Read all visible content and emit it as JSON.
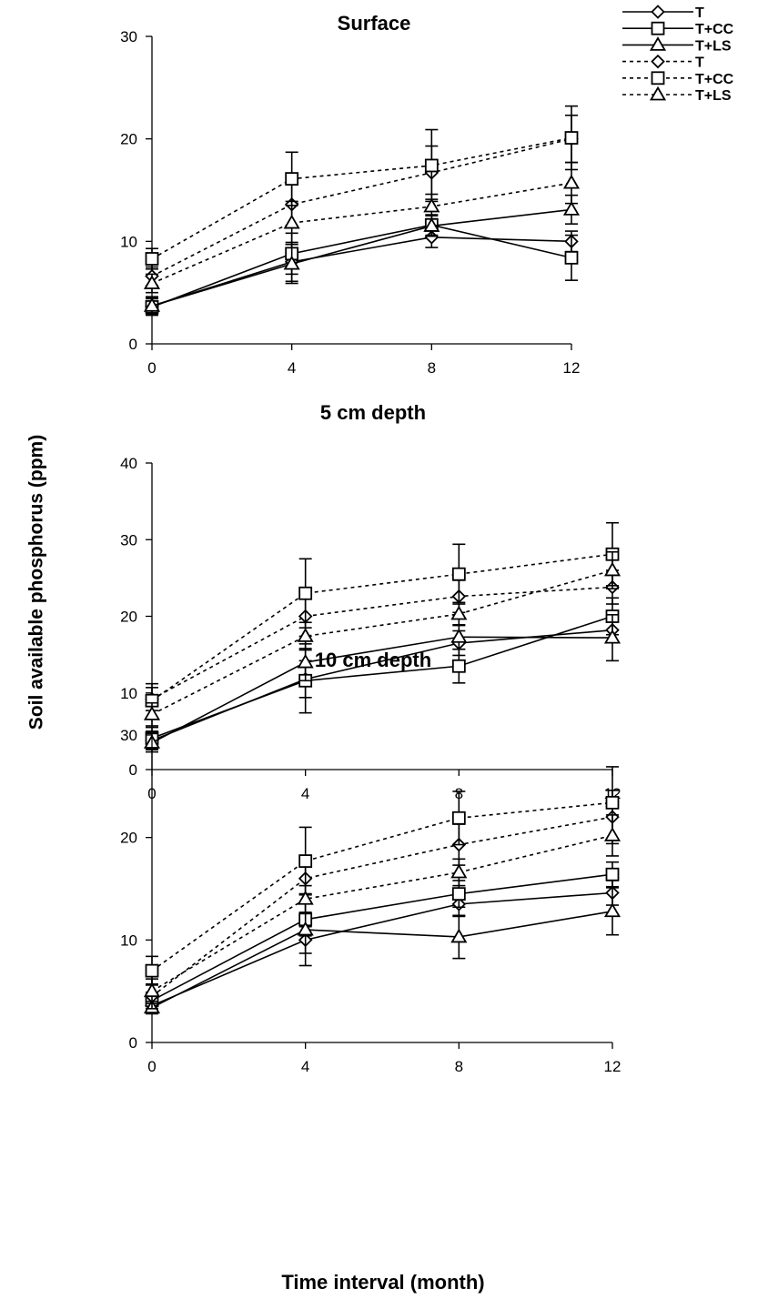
{
  "figure": {
    "ylabel": "Soil available phosphorus (ppm)",
    "xlabel": "Time interval (month)"
  },
  "legend": {
    "placement": "top-right",
    "entries": [
      {
        "label": "T",
        "marker": "diamond",
        "dash": "solid"
      },
      {
        "label": "T+CC",
        "marker": "square",
        "dash": "solid"
      },
      {
        "label": "T+LS",
        "marker": "triangle",
        "dash": "solid"
      },
      {
        "label": "T",
        "marker": "diamond",
        "dash": "dotted"
      },
      {
        "label": "T+CC",
        "marker": "square",
        "dash": "dotted"
      },
      {
        "label": "T+LS",
        "marker": "triangle",
        "dash": "dotted"
      }
    ]
  },
  "chart_data": [
    {
      "type": "line",
      "title": "Surface",
      "x": [
        0,
        4,
        8,
        12
      ],
      "xticks": [
        "0",
        "4",
        "8",
        "12"
      ],
      "ylim": [
        0,
        30
      ],
      "yticks": [
        0,
        10,
        20,
        30
      ],
      "grid": false,
      "series": [
        {
          "name": "T",
          "style": "solid",
          "marker": "diamond",
          "values": [
            3.7,
            8.0,
            10.4,
            10.0
          ],
          "errors": [
            0.9,
            1.9,
            1.0,
            1.0
          ]
        },
        {
          "name": "T+CC",
          "style": "solid",
          "marker": "square",
          "values": [
            3.6,
            8.8,
            11.6,
            8.4
          ],
          "errors": [
            0.8,
            2.0,
            1.0,
            2.2
          ]
        },
        {
          "name": "T+LS",
          "style": "solid",
          "marker": "triangle",
          "values": [
            3.7,
            7.8,
            11.5,
            13.1
          ],
          "errors": [
            0.8,
            1.9,
            1.0,
            1.4
          ]
        },
        {
          "name": "T",
          "style": "dotted",
          "marker": "diamond",
          "values": [
            6.6,
            13.6,
            16.7,
            20.0
          ],
          "errors": [
            0.9,
            2.1,
            2.6,
            2.3
          ]
        },
        {
          "name": "T+CC",
          "style": "dotted",
          "marker": "square",
          "values": [
            8.3,
            16.1,
            17.4,
            20.1
          ],
          "errors": [
            1.0,
            2.6,
            3.5,
            3.1
          ]
        },
        {
          "name": "T+LS",
          "style": "dotted",
          "marker": "triangle",
          "values": [
            5.9,
            11.8,
            13.4,
            15.7
          ],
          "errors": [
            0.9,
            2.1,
            1.2,
            2.0
          ]
        }
      ]
    },
    {
      "type": "line",
      "title": "5 cm depth",
      "x": [
        0,
        4,
        8,
        12
      ],
      "xticks": [
        "0",
        "4",
        "8",
        "12"
      ],
      "ylim": [
        0,
        40
      ],
      "yticks": [
        0,
        10,
        20,
        30,
        40
      ],
      "grid": false,
      "series": [
        {
          "name": "T",
          "style": "solid",
          "marker": "diamond",
          "values": [
            3.8,
            11.8,
            16.5,
            18.2
          ],
          "errors": [
            1.2,
            2.4,
            1.6,
            1.6
          ]
        },
        {
          "name": "T+CC",
          "style": "solid",
          "marker": "square",
          "values": [
            4.1,
            11.6,
            13.5,
            20.0
          ],
          "errors": [
            1.4,
            4.2,
            2.2,
            2.4
          ]
        },
        {
          "name": "T+LS",
          "style": "solid",
          "marker": "triangle",
          "values": [
            3.5,
            14.0,
            17.3,
            17.2
          ],
          "errors": [
            1.2,
            2.4,
            1.6,
            3.0
          ]
        },
        {
          "name": "T",
          "style": "dotted",
          "marker": "diamond",
          "values": [
            9.2,
            20.0,
            22.6,
            23.8
          ],
          "errors": [
            1.5,
            2.6,
            2.1,
            2.2
          ]
        },
        {
          "name": "T+CC",
          "style": "dotted",
          "marker": "square",
          "values": [
            9.0,
            23.0,
            25.5,
            28.1
          ],
          "errors": [
            2.2,
            4.5,
            3.9,
            4.1
          ]
        },
        {
          "name": "T+LS",
          "style": "dotted",
          "marker": "triangle",
          "values": [
            7.2,
            17.4,
            20.3,
            26.0
          ],
          "errors": [
            1.5,
            1.8,
            1.5,
            2.4
          ]
        }
      ]
    },
    {
      "type": "line",
      "title": "10 cm depth",
      "x": [
        0,
        4,
        8,
        12
      ],
      "xticks": [
        "0",
        "4",
        "8",
        "12"
      ],
      "ylim": [
        0,
        30
      ],
      "yticks": [
        0,
        10,
        20,
        30
      ],
      "grid": false,
      "series": [
        {
          "name": "T",
          "style": "solid",
          "marker": "diamond",
          "values": [
            3.6,
            10.0,
            13.5,
            14.6
          ],
          "errors": [
            0.6,
            1.3,
            1.2,
            1.2
          ]
        },
        {
          "name": "T+CC",
          "style": "solid",
          "marker": "square",
          "values": [
            4.1,
            12.0,
            14.5,
            16.4
          ],
          "errors": [
            0.8,
            1.6,
            1.3,
            1.2
          ]
        },
        {
          "name": "T+LS",
          "style": "solid",
          "marker": "triangle",
          "values": [
            3.4,
            11.0,
            10.3,
            12.8
          ],
          "errors": [
            0.6,
            3.5,
            2.1,
            2.3
          ]
        },
        {
          "name": "T",
          "style": "dotted",
          "marker": "diamond",
          "values": [
            4.5,
            16.0,
            19.3,
            22.0
          ],
          "errors": [
            1.2,
            1.5,
            2.0,
            2.6
          ]
        },
        {
          "name": "T+CC",
          "style": "dotted",
          "marker": "square",
          "values": [
            7.0,
            17.7,
            21.9,
            23.4
          ],
          "errors": [
            1.4,
            3.3,
            2.6,
            3.5
          ]
        },
        {
          "name": "T+LS",
          "style": "dotted",
          "marker": "triangle",
          "values": [
            5.0,
            14.0,
            16.6,
            20.2
          ],
          "errors": [
            1.2,
            1.3,
            1.3,
            2.0
          ]
        }
      ]
    }
  ]
}
